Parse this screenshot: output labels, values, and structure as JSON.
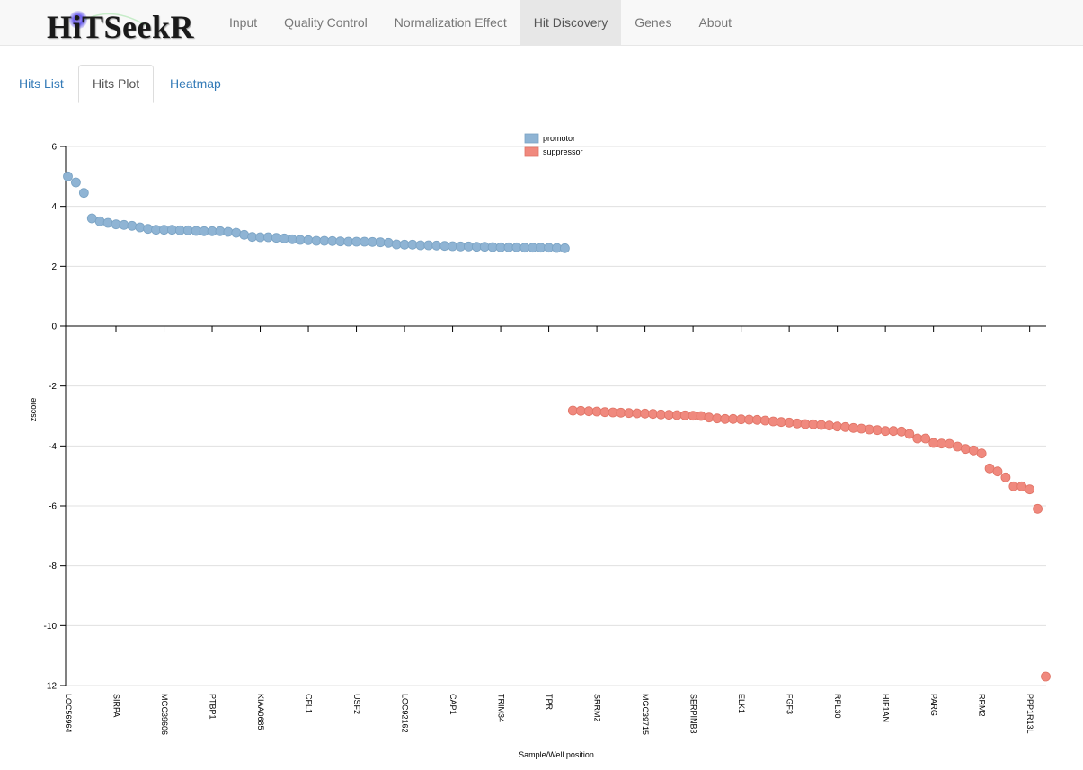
{
  "app": {
    "brand": "HiTSeekR"
  },
  "nav": {
    "items": [
      "Input",
      "Quality Control",
      "Normalization Effect",
      "Hit Discovery",
      "Genes",
      "About"
    ],
    "active": 3
  },
  "tabs": {
    "items": [
      "Hits List",
      "Hits Plot",
      "Heatmap"
    ],
    "active": 1
  },
  "colors": {
    "promotor": "#8fb4d4",
    "suppressor": "#f0897e",
    "grid": "#e0e0e0"
  },
  "chart_data": {
    "type": "scatter",
    "xlabel": "Sample/Well.position",
    "ylabel": "zscore",
    "ylim": [
      -12,
      6
    ],
    "yticks": [
      6,
      4,
      2,
      0,
      -2,
      -4,
      -6,
      -8,
      -10,
      -12
    ],
    "grid": true,
    "legend_position": "top-center",
    "x_tick_labels": [
      "LOC56964",
      "SIRPA",
      "MGC39606",
      "PTBP1",
      "KIAA0685",
      "CFL1",
      "USF2",
      "LOC92162",
      "CAP1",
      "TRIM34",
      "TPR",
      "SRRM2",
      "MGC39715",
      "SERPINB3",
      "ELK1",
      "FGF3",
      "RPL30",
      "HIF1AN",
      "PARG",
      "RRM2",
      "PPP1R13L"
    ],
    "x_tick_every": 6,
    "series": [
      {
        "name": "promotor",
        "values": [
          5.0,
          4.8,
          4.45,
          3.6,
          3.5,
          3.45,
          3.4,
          3.38,
          3.35,
          3.3,
          3.25,
          3.22,
          3.22,
          3.22,
          3.2,
          3.2,
          3.18,
          3.17,
          3.17,
          3.17,
          3.15,
          3.12,
          3.05,
          2.98,
          2.97,
          2.97,
          2.95,
          2.93,
          2.9,
          2.88,
          2.87,
          2.85,
          2.85,
          2.84,
          2.83,
          2.82,
          2.82,
          2.82,
          2.81,
          2.8,
          2.78,
          2.73,
          2.72,
          2.72,
          2.7,
          2.7,
          2.69,
          2.68,
          2.67,
          2.66,
          2.66,
          2.65,
          2.65,
          2.64,
          2.63,
          2.63,
          2.63,
          2.62,
          2.62,
          2.62,
          2.62,
          2.61,
          2.6
        ]
      },
      {
        "name": "suppressor",
        "values": [
          -2.82,
          -2.83,
          -2.84,
          -2.85,
          -2.87,
          -2.88,
          -2.89,
          -2.9,
          -2.91,
          -2.92,
          -2.93,
          -2.95,
          -2.96,
          -2.97,
          -2.98,
          -2.99,
          -3.0,
          -3.05,
          -3.08,
          -3.1,
          -3.1,
          -3.11,
          -3.12,
          -3.13,
          -3.15,
          -3.18,
          -3.2,
          -3.22,
          -3.25,
          -3.27,
          -3.28,
          -3.3,
          -3.32,
          -3.35,
          -3.37,
          -3.4,
          -3.42,
          -3.45,
          -3.47,
          -3.5,
          -3.5,
          -3.52,
          -3.6,
          -3.75,
          -3.75,
          -3.9,
          -3.92,
          -3.93,
          -4.02,
          -4.1,
          -4.15,
          -4.25,
          -4.75,
          -4.85,
          -5.05,
          -5.35,
          -5.35,
          -5.45,
          -6.1,
          -11.7
        ]
      }
    ]
  }
}
